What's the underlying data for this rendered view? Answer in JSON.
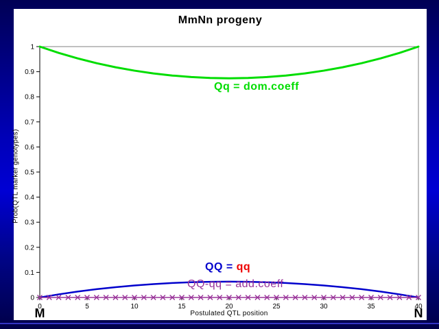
{
  "chart_data": {
    "type": "line",
    "title": "MmNn progeny",
    "xlabel": "Postulated QTL position",
    "ylabel": "Prob(QTL marker genotypes)",
    "left_marker": "M",
    "right_marker": "N",
    "xlim": [
      0,
      40
    ],
    "ylim": [
      0,
      1
    ],
    "grid": false,
    "legend_position": "none",
    "x_ticks": [
      {
        "v": 0,
        "t": "0"
      },
      {
        "v": 5,
        "t": "5"
      },
      {
        "v": 10,
        "t": "10"
      },
      {
        "v": 15,
        "t": "15"
      },
      {
        "v": 20,
        "t": "20"
      },
      {
        "v": 25,
        "t": "25"
      },
      {
        "v": 30,
        "t": "30"
      },
      {
        "v": 35,
        "t": "35"
      },
      {
        "v": 40,
        "t": "40"
      }
    ],
    "y_ticks": [
      {
        "v": 1,
        "t": "1"
      },
      {
        "v": 0.9,
        "t": "0.9"
      },
      {
        "v": 0.8,
        "t": "0.8"
      },
      {
        "v": 0.7,
        "t": "0.7"
      },
      {
        "v": 0.6,
        "t": "0.6"
      },
      {
        "v": 0.5,
        "t": "0.5"
      },
      {
        "v": 0.4,
        "t": "0.4"
      },
      {
        "v": 0.3,
        "t": "0.3"
      },
      {
        "v": 0.2,
        "t": "0.2"
      },
      {
        "v": 0.1,
        "t": "0.1"
      },
      {
        "v": 0,
        "t": "0"
      }
    ],
    "series": [
      {
        "name": "Qq = dom.coeff",
        "color": "#00dd00",
        "width": 3,
        "x": [
          0,
          2,
          4,
          6,
          8,
          10,
          12,
          14,
          16,
          18,
          20,
          22,
          24,
          26,
          28,
          30,
          32,
          34,
          36,
          38,
          40
        ],
        "y": [
          1.0,
          0.975,
          0.9531,
          0.934,
          0.9177,
          0.9042,
          0.8932,
          0.8847,
          0.8786,
          0.875,
          0.8737,
          0.875,
          0.8786,
          0.8847,
          0.8932,
          0.9042,
          0.9177,
          0.934,
          0.9531,
          0.975,
          1.0
        ]
      },
      {
        "name": "QQ = qq",
        "color": "#0000cc",
        "width": 2.5,
        "x": [
          0,
          2,
          4,
          6,
          8,
          10,
          12,
          14,
          16,
          18,
          20,
          22,
          24,
          26,
          28,
          30,
          32,
          34,
          36,
          38,
          40
        ],
        "y": [
          0,
          0.0125,
          0.0235,
          0.033,
          0.0411,
          0.0479,
          0.0534,
          0.0577,
          0.0607,
          0.0625,
          0.0631,
          0.0625,
          0.0607,
          0.0577,
          0.0534,
          0.0479,
          0.0411,
          0.033,
          0.0235,
          0.0125,
          0
        ]
      },
      {
        "name": "QQ-qq = add.coeff",
        "color": "#993399",
        "width": 1.5,
        "marker": "x",
        "x_start": 0,
        "x_end": 40,
        "x_step": 1,
        "y_value": 0
      }
    ],
    "annotations": [
      {
        "text": "Qq = dom.coeff",
        "color": "#00dd00",
        "bold": true
      },
      {
        "parts": [
          {
            "text": "QQ = ",
            "color": "#0000cc"
          },
          {
            "text": "qq",
            "color": "#ee0000"
          }
        ],
        "bold": true
      },
      {
        "text": "QQ-qq = add.coeff",
        "color": "#993399",
        "bold": false
      }
    ],
    "colors": {
      "frame_border": "#000066",
      "accent_line": "#3434c4",
      "plot_frame": "#808080",
      "axis": "#000000",
      "background": "#ffffff"
    }
  }
}
